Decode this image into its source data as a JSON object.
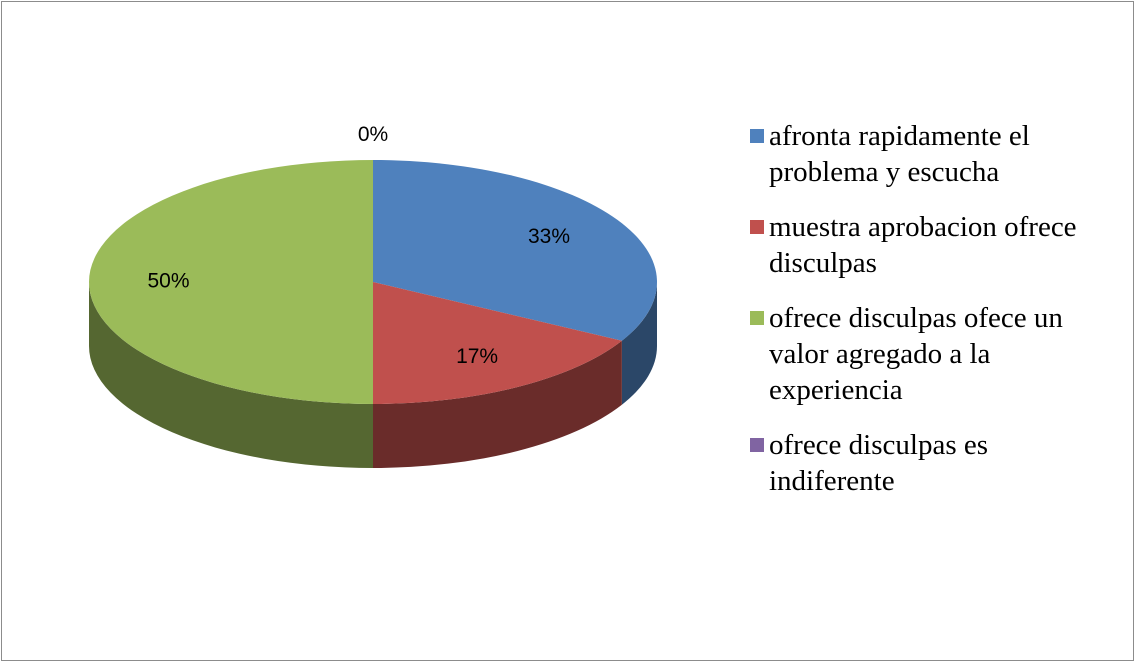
{
  "chart_data": {
    "type": "pie",
    "categories": [
      "afronta rapidamente el problema y escucha",
      "muestra aprobacion ofrece disculpas",
      "ofrece disculpas ofece un valor agregado a la experiencia",
      "ofrece disculpas es indiferente"
    ],
    "values": [
      33,
      17,
      50,
      0
    ],
    "value_labels": [
      "33%",
      "17%",
      "50%",
      "0%"
    ],
    "colors": [
      "#4f81bd",
      "#c0504d",
      "#9bbb59",
      "#8064a2"
    ],
    "legend": "right"
  }
}
